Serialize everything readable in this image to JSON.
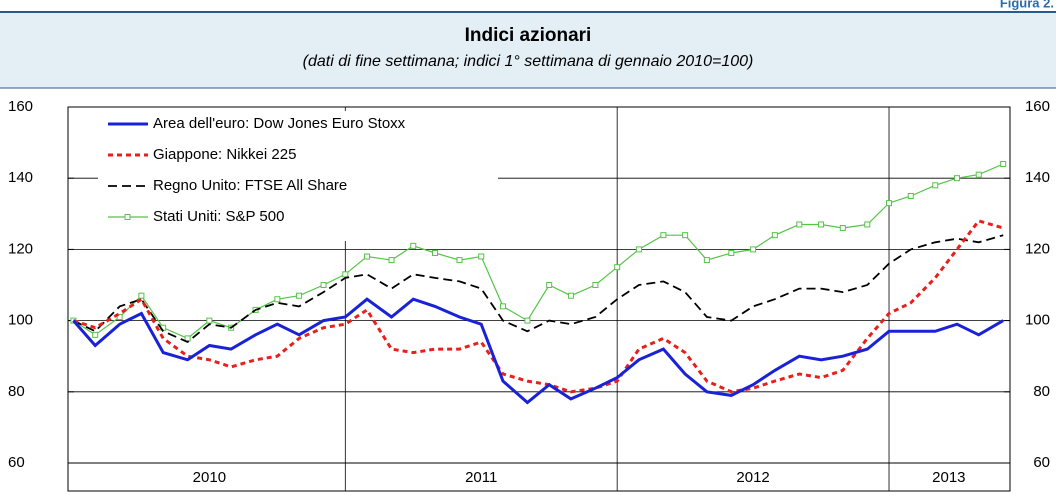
{
  "figure_label": "Figura 2.",
  "chart_data": {
    "type": "line",
    "title": "Indici azionari",
    "subtitle": "(dati di fine settimana; indici 1° settimana di gennaio 2010=100)",
    "x": [
      2010.0,
      2010.08,
      2010.17,
      2010.25,
      2010.33,
      2010.42,
      2010.5,
      2010.58,
      2010.67,
      2010.75,
      2010.83,
      2010.92,
      2011.0,
      2011.08,
      2011.17,
      2011.25,
      2011.33,
      2011.42,
      2011.5,
      2011.58,
      2011.67,
      2011.75,
      2011.83,
      2011.92,
      2012.0,
      2012.08,
      2012.17,
      2012.25,
      2012.33,
      2012.42,
      2012.5,
      2012.58,
      2012.67,
      2012.75,
      2012.83,
      2012.92,
      2013.0,
      2013.08,
      2013.17,
      2013.25,
      2013.33,
      2013.42
    ],
    "xlim": [
      2009.98,
      2013.445
    ],
    "xticks": [
      {
        "value": 2010.5,
        "label": "2010"
      },
      {
        "value": 2011.5,
        "label": "2011"
      },
      {
        "value": 2012.5,
        "label": "2012"
      },
      {
        "value": 2013.22,
        "label": "2013"
      }
    ],
    "year_lines": [
      2011,
      2012,
      2013
    ],
    "ylim": [
      60,
      160
    ],
    "yticks": [
      60,
      80,
      100,
      120,
      140,
      160
    ],
    "grid": true,
    "legend": "upper left",
    "series": [
      {
        "name": "Area dell'euro: Dow Jones Euro Stoxx",
        "color": "#1a22d8",
        "line_style": "solid",
        "values": [
          100,
          93,
          99,
          102,
          91,
          89,
          93,
          92,
          96,
          99,
          96,
          100,
          101,
          106,
          101,
          106,
          104,
          101,
          99,
          83,
          77,
          82,
          78,
          81,
          84,
          89,
          92,
          85,
          80,
          79,
          82,
          86,
          90,
          89,
          90,
          92,
          97,
          97,
          97,
          99,
          96,
          100
        ]
      },
      {
        "name": "Giappone: Nikkei 225",
        "color": "#e8201c",
        "line_style": "dotted",
        "values": [
          100,
          98,
          102,
          106,
          95,
          90,
          89,
          87,
          89,
          90,
          95,
          98,
          99,
          103,
          92,
          91,
          92,
          92,
          94,
          85,
          83,
          82,
          80,
          81,
          83,
          92,
          95,
          91,
          83,
          80,
          81,
          83,
          85,
          84,
          86,
          95,
          102,
          105,
          112,
          120,
          128,
          126
        ]
      },
      {
        "name": "Regno Unito: FTSE All Share",
        "color": "#000000",
        "line_style": "dashed",
        "values": [
          100,
          97,
          104,
          106,
          97,
          94,
          99,
          98,
          103,
          105,
          104,
          108,
          112,
          113,
          109,
          113,
          112,
          111,
          109,
          100,
          97,
          100,
          99,
          101,
          106,
          110,
          111,
          108,
          101,
          100,
          104,
          106,
          109,
          109,
          108,
          110,
          116,
          120,
          122,
          123,
          122,
          124
        ]
      },
      {
        "name": "Stati Uniti: S&P 500",
        "color": "#55c447",
        "line_style": "solid",
        "marker": "square",
        "values": [
          100,
          96,
          101,
          107,
          98,
          95,
          100,
          98,
          103,
          106,
          107,
          110,
          113,
          118,
          117,
          121,
          119,
          117,
          118,
          104,
          100,
          110,
          107,
          110,
          115,
          120,
          124,
          124,
          117,
          119,
          120,
          124,
          127,
          127,
          126,
          127,
          133,
          135,
          138,
          140,
          141,
          144
        ]
      }
    ]
  }
}
